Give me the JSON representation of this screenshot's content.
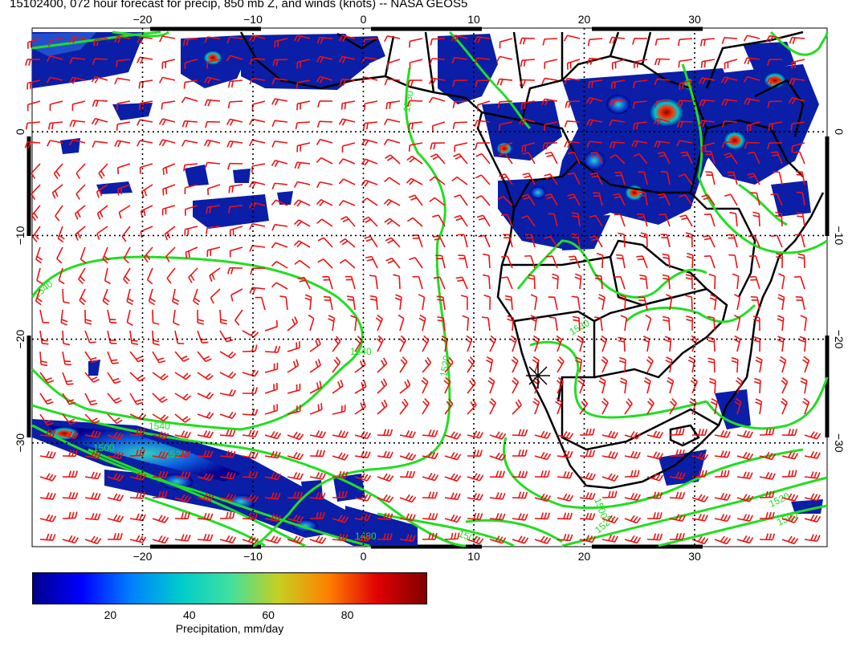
{
  "title": "15102400, 072 hour forecast for precip, 850 mb Z, and winds (knots) -- NASA GEOS5",
  "map": {
    "lon_range": [
      -30,
      42
    ],
    "lat_range": [
      -40,
      10
    ],
    "lon_ticks": [
      -20,
      -10,
      0,
      10,
      20,
      30
    ],
    "lat_ticks": [
      0,
      -10,
      -20,
      -30
    ],
    "lon_tick_labels": [
      "−20",
      "−10",
      "0",
      "10",
      "20",
      "30"
    ],
    "lat_tick_labels": [
      "0",
      "−10",
      "−20",
      "−30"
    ],
    "contour_labels": [
      "1530",
      "1540",
      "1540",
      "1520",
      "1540",
      "1500",
      "1520",
      "1530",
      "1500",
      "1480",
      "1500",
      "1520",
      "1520",
      "1500"
    ],
    "colors": {
      "contour": "#22dd22",
      "barb": "#ee1111",
      "coast": "#000000",
      "grid": "#000000"
    }
  },
  "colorbar": {
    "ticks": [
      20,
      40,
      60,
      80
    ],
    "range": [
      0,
      100
    ],
    "label": "Precipitation, mm/day",
    "colors": [
      "#00008b",
      "#0000ff",
      "#0080ff",
      "#00cccc",
      "#40e0a0",
      "#c8d020",
      "#ff8000",
      "#e00000",
      "#800000"
    ]
  }
}
